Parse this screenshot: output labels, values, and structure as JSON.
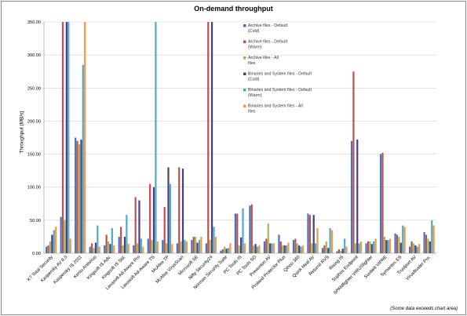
{
  "chart_data": {
    "type": "bar",
    "title": "On-demand throughput",
    "ylabel": "Throughput (MB/s)",
    "ylim": [
      0,
      350
    ],
    "yticks": [
      "0.00",
      "50.00",
      "100.00",
      "150.00",
      "200.00",
      "250.00",
      "300.00",
      "350.00"
    ],
    "note": "(Some data exceeds chart area)",
    "legend_placement": "right (inside plot)",
    "categories": [
      "K7 Total Security",
      "Kaspersky AV 6.0",
      "Kaspersky IS 2011",
      "Keniu Antivirus",
      "Kingsoft IS Adv.",
      "Kingsoft IS Std.",
      "Lavasoft Ad-Aware Pro",
      "Lavasoft Ad-Aware TS",
      "McAfee TP",
      "McAfee VirusScan",
      "Microsoft SE",
      "Nifty Security24",
      "Norman Security Suite",
      "PC Tools IS",
      "PC Tools SD",
      "Preventon AV",
      "Proland Protector Plus",
      "Qihoo 360",
      "Quick Heal AV",
      "Returnil RVS",
      "Rising IS",
      "Sophos Endpoint",
      "SPAMfighter VIRUSfighter",
      "Sunbelt VIPRE",
      "Symantec ES",
      "Trustport AV",
      "VirusBuster Pro."
    ],
    "series": [
      {
        "name": "Archive files - Default (Cold)",
        "color": "#4472c4",
        "values": [
          10,
          55,
          175,
          10,
          12,
          25,
          12,
          22,
          20,
          15,
          20,
          15,
          4,
          60,
          72,
          18,
          28,
          20,
          60,
          8,
          3,
          170,
          15,
          150,
          30,
          10,
          32
        ]
      },
      {
        "name": "Archive files - Default (Warm)",
        "color": "#c0504d",
        "values": [
          12,
          350,
          170,
          15,
          28,
          40,
          85,
          105,
          70,
          130,
          25,
          350,
          6,
          60,
          74,
          22,
          18,
          22,
          58,
          12,
          6,
          275,
          18,
          152,
          28,
          18,
          28
        ]
      },
      {
        "name": "Archive files - All files",
        "color": "#9bbb59",
        "values": [
          18,
          50,
          165,
          8,
          18,
          12,
          15,
          20,
          15,
          18,
          25,
          20,
          10,
          12,
          12,
          45,
          12,
          15,
          15,
          18,
          4,
          15,
          18,
          25,
          25,
          15,
          22
        ]
      },
      {
        "name": "Binaries and System files - Default (Cold)",
        "color": "#4e3d7e",
        "values": [
          28,
          350,
          172,
          16,
          14,
          25,
          80,
          100,
          130,
          128,
          16,
          350,
          7,
          24,
          14,
          15,
          12,
          12,
          58,
          8,
          7,
          172,
          14,
          20,
          16,
          12,
          18
        ]
      },
      {
        "name": "Binaries and System files - Default (Warm)",
        "color": "#4bacc6",
        "values": [
          35,
          350,
          285,
          42,
          38,
          58,
          22,
          350,
          105,
          20,
          20,
          40,
          8,
          68,
          10,
          15,
          12,
          10,
          15,
          38,
          22,
          15,
          18,
          20,
          42,
          10,
          50
        ]
      },
      {
        "name": "Binaries and System files - All files",
        "color": "#f79646",
        "values": [
          40,
          22,
          350,
          10,
          12,
          14,
          10,
          18,
          14,
          18,
          25,
          25,
          15,
          15,
          12,
          15,
          16,
          12,
          38,
          35,
          10,
          18,
          22,
          22,
          40,
          14,
          42
        ]
      }
    ]
  }
}
